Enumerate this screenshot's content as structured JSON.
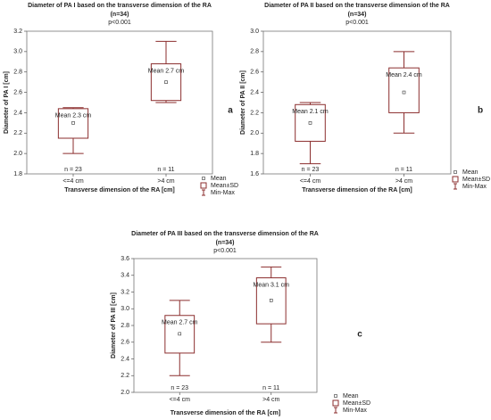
{
  "chart_data": [
    {
      "type": "box",
      "title": "Diameter of PA I based on the transverse dimension of the RA",
      "subtitle": "(n=34)",
      "p_value": "p<0.001",
      "y_label": "Diameter of PA I [cm]",
      "x_label": "Transverse dimension of the RA [cm]",
      "categories": [
        "<=4 cm",
        ">4 cm"
      ],
      "values": [
        2.3,
        2.7
      ],
      "value_labels": [
        "Mean 2.3 cm",
        "Mean 2.7 cm"
      ],
      "box_low": [
        2.15,
        2.52
      ],
      "box_high": [
        2.44,
        2.88
      ],
      "min": [
        2.0,
        2.5
      ],
      "max": [
        2.45,
        3.1
      ],
      "n_labels": [
        "n = 23",
        "n = 11"
      ],
      "panel_label": "a",
      "legend": [
        "Mean",
        "Mean±SD",
        "Min-Max"
      ],
      "color": "#8b2e2e",
      "ylim": [
        1.8,
        3.2
      ],
      "yticks": [
        1.8,
        {
          "value": 2,
          "label": "2.0"
        },
        2.2,
        2.4,
        2.6,
        2.8,
        {
          "value": 3,
          "label": "3.0"
        },
        3.2
      ]
    },
    {
      "type": "box",
      "title": "Diameter of PA II based on the transverse dimension of the RA",
      "subtitle": "(n=34)",
      "p_value": "p<0.001",
      "y_label": "Diameter of PA II [cm]",
      "x_label": "Transverse dimension of the RA [cm]",
      "categories": [
        "<=4 cm",
        ">4 cm"
      ],
      "values": [
        2.1,
        2.4
      ],
      "value_labels": [
        "Mean 2.1 cm",
        "Mean 2.4 cm"
      ],
      "box_low": [
        1.92,
        2.2
      ],
      "box_high": [
        2.28,
        2.64
      ],
      "min": [
        1.7,
        2.0
      ],
      "max": [
        2.3,
        2.8
      ],
      "n_labels": [
        "n = 23",
        "n = 11"
      ],
      "panel_label": "b",
      "legend": [
        "Mean",
        "Mean±SD",
        "Min-Max"
      ],
      "color": "#8b2e2e",
      "ylim": [
        1.6,
        3.0
      ],
      "yticks": [
        1.6,
        1.8,
        {
          "value": 2,
          "label": "2.0"
        },
        2.2,
        2.4,
        2.6,
        2.8,
        {
          "value": 3,
          "label": "3.0"
        }
      ]
    },
    {
      "type": "box",
      "title": "Diameter of PA III based on the transverse dimension of the RA",
      "subtitle": "(n=34)",
      "p_value": "p<0.001",
      "y_label": "Diameter of PA III [cm]",
      "x_label": "Transverse dimension of the RA [cm]",
      "categories": [
        "<=4 cm",
        ">4 cm"
      ],
      "values": [
        2.7,
        3.1
      ],
      "value_labels": [
        "Mean 2.7 cm",
        "Mean 3.1 cm"
      ],
      "box_low": [
        2.47,
        2.82
      ],
      "box_high": [
        2.92,
        3.37
      ],
      "min": [
        2.2,
        2.6
      ],
      "max": [
        3.1,
        3.5
      ],
      "n_labels": [
        "n = 23",
        "n = 11"
      ],
      "panel_label": "c",
      "legend": [
        "Mean",
        "Mean±SD",
        "Min-Max"
      ],
      "color": "#8b2e2e",
      "ylim": [
        2.0,
        3.6
      ],
      "yticks": [
        {
          "value": 2,
          "label": "2.0"
        },
        2.2,
        2.4,
        2.6,
        2.8,
        {
          "value": 3,
          "label": "3.0"
        },
        3.2,
        3.4,
        3.6
      ]
    }
  ]
}
